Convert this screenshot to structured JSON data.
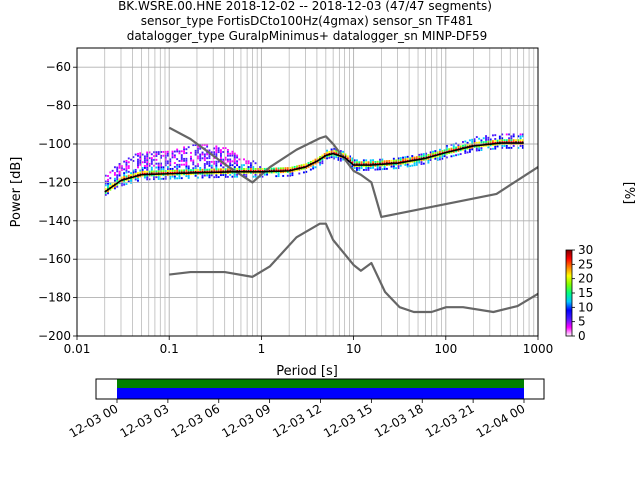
{
  "chart_data": [
    {
      "type": "heatmap",
      "chart_kind": "PPSD (probabilistic power spectral density)",
      "title_lines": [
        "BK.WSRE.00.HNE   2018-12-02 -- 2018-12-03  (47/47 segments)",
        "sensor_type FortisDCto100Hz(4gmax) sensor_sn TF481",
        "datalogger_type GuralpMinimus+ datalogger_sn MINP-DF59"
      ],
      "xlabel": "Period [s]",
      "ylabel": "Power [dB]",
      "xscale": "log",
      "xlim": [
        0.01,
        1000
      ],
      "ylim": [
        -200,
        -50
      ],
      "xticks": [
        0.01,
        0.1,
        1,
        10,
        100,
        1000
      ],
      "xtick_labels": [
        "0.01",
        "0.1",
        "1",
        "10",
        "100",
        "1000"
      ],
      "yticks": [
        -60,
        -80,
        -100,
        -120,
        -140,
        -160,
        -180,
        -200
      ],
      "ytick_labels": [
        "−60",
        "−80",
        "−100",
        "−120",
        "−140",
        "−160",
        "−180",
        "−200"
      ],
      "grid": true,
      "colorbar": {
        "label": "[%]",
        "range": [
          0,
          30
        ],
        "ticks": [
          0,
          5,
          10,
          15,
          20,
          25,
          30
        ],
        "tick_labels": [
          "0",
          "5",
          "10",
          "15",
          "20",
          "25",
          "30"
        ],
        "colors": [
          "#ffffff",
          "#ff00ff",
          "#4a1aff",
          "#0000ff",
          "#00c8ff",
          "#00ff80",
          "#80ff00",
          "#ffff00",
          "#ff8000",
          "#ff0000",
          "#800000"
        ]
      },
      "series": [
        {
          "role": "noise model (upper)",
          "color": "#666666",
          "x": [
            0.1,
            0.17,
            0.4,
            0.8,
            1.24,
            2.4,
            4.3,
            5.0,
            6.0,
            10,
            12,
            15.6,
            20,
            354.8,
            1000
          ],
          "y": [
            -91.5,
            -97.4,
            -110.5,
            -120,
            -112,
            -103,
            -97,
            -96,
            -100,
            -114,
            -116,
            -120,
            -138,
            -126,
            -112
          ]
        },
        {
          "role": "noise model (lower)",
          "color": "#666666",
          "x": [
            0.1,
            0.17,
            0.4,
            0.8,
            1.24,
            2.4,
            4.3,
            5.0,
            6.0,
            10,
            12,
            15.6,
            21.9,
            31.6,
            45,
            70,
            101,
            154,
            328,
            600,
            1000
          ],
          "y": [
            -168,
            -166.7,
            -166.7,
            -169.2,
            -163.7,
            -148.6,
            -141.5,
            -141.5,
            -150,
            -163,
            -166,
            -162,
            -177,
            -185,
            -187.5,
            -187.5,
            -185,
            -185,
            -187.5,
            -184.4,
            -178
          ]
        },
        {
          "role": "mode (black)",
          "color": "#000000",
          "x": [
            0.02,
            0.03,
            0.05,
            0.1,
            0.2,
            0.5,
            1,
            2,
            3,
            4,
            5,
            6,
            8,
            10,
            15,
            30,
            60,
            100,
            200,
            400,
            700
          ],
          "y": [
            -125,
            -119,
            -116,
            -115.5,
            -115,
            -114.5,
            -114.5,
            -114,
            -112,
            -109,
            -106,
            -105,
            -107,
            -111,
            -111,
            -110,
            -107.5,
            -104.5,
            -101,
            -99.5,
            -99.5
          ]
        }
      ]
    },
    {
      "type": "timeline",
      "role": "data coverage",
      "x_tick_labels": [
        "12-03 00",
        "12-03 03",
        "12-03 06",
        "12-03 09",
        "12-03 12",
        "12-03 15",
        "12-03 18",
        "12-03 21",
        "12-04 00"
      ],
      "bars": [
        {
          "color": "#008000",
          "start": "12-03 00",
          "end": "12-04 00"
        },
        {
          "color": "#0000ff",
          "start": "12-03 00",
          "end": "12-04 00"
        }
      ]
    }
  ]
}
